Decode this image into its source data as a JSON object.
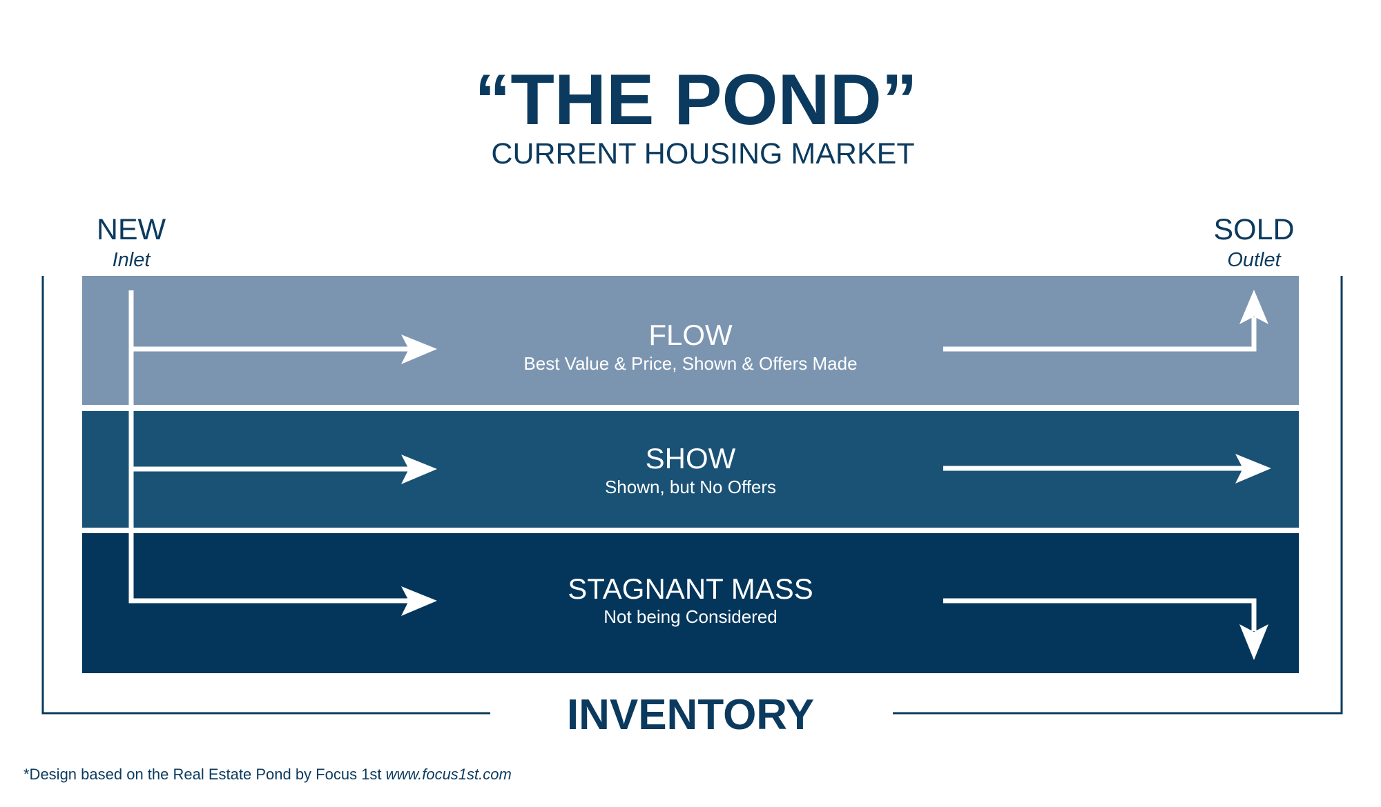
{
  "title": "“THE POND”",
  "subtitle": "CURRENT HOUSING MARKET",
  "inlet": {
    "label": "NEW",
    "sublabel": "Inlet"
  },
  "outlet": {
    "label": "SOLD",
    "sublabel": "Outlet"
  },
  "bands": [
    {
      "label": "FLOW",
      "description": "Best Value & Price, Shown & Offers Made",
      "color": "#7b95b1"
    },
    {
      "label": "SHOW",
      "description": "Shown, but No Offers",
      "color": "#1a5276"
    },
    {
      "label": "STAGNANT MASS",
      "description": "Not being Considered",
      "color": "#04365c"
    }
  ],
  "container_label": "INVENTORY",
  "footer": {
    "text": "*Design based on the Real Estate Pond by Focus 1st ",
    "link": "www.focus1st.com"
  },
  "colors": {
    "text": "#0b3a5e",
    "arrow": "#ffffff"
  }
}
